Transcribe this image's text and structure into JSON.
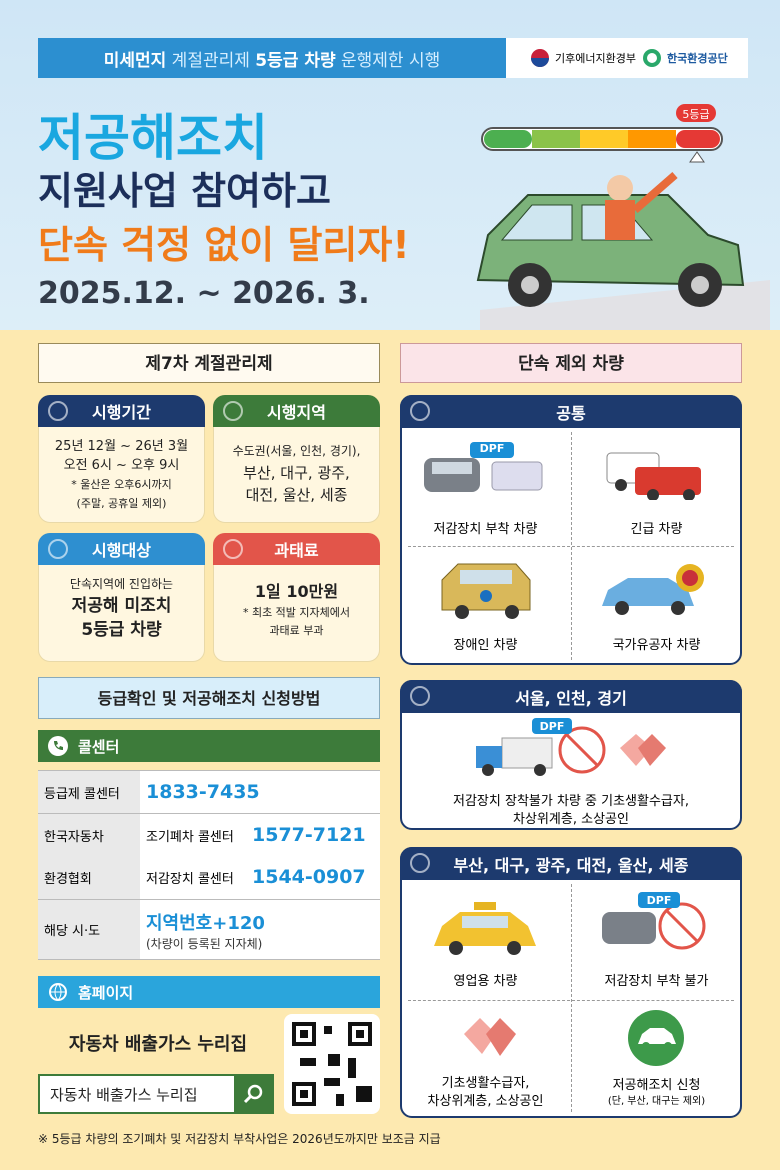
{
  "header": {
    "banner": [
      "미세먼지",
      " 계절관리제 ",
      "5등급 차량",
      " 운행제한 시행"
    ],
    "logos": [
      "기후에너지환경부",
      "한국환경공단"
    ],
    "title": [
      "저공해조치",
      "지원사업 참여하고",
      "단속 걱정 없이 달리자!"
    ],
    "period": "2025.12. ~ 2026. 3.",
    "gauge_label": "5등급"
  },
  "left": {
    "title": "제7차 계절관리제",
    "boxes": [
      {
        "label": "시행기간",
        "lines": [
          "25년 12월 ~ 26년 3월",
          "오전 6시 ~ 오후 9시",
          "* 울산은 오후6시까지",
          "(주말, 공휴일 제외)"
        ]
      },
      {
        "label": "시행지역",
        "lines": [
          "수도권(서울, 인천, 경기),",
          "부산, 대구, 광주,",
          "대전, 울산, 세종"
        ]
      },
      {
        "label": "시행대상",
        "lines": [
          "단속지역에 진입하는",
          "저공해 미조치",
          "5등급 차량"
        ]
      },
      {
        "label": "과태료",
        "lines": [
          "1일 10만원",
          "* 최초 적발 지자체에서",
          "과태료 부과"
        ]
      }
    ],
    "apply_title": "등급확인 및 저공해조치 신청방법",
    "call_center": "콜센터",
    "table": {
      "rows": [
        [
          "등급제 콜센터",
          "1833-7435"
        ],
        [
          "한국자동차",
          "조기폐차 콜센터",
          "1577-7121"
        ],
        [
          "환경협회",
          "저감장치 콜센터",
          "1544-0907"
        ],
        [
          "해당 시·도",
          "지역번호+120",
          "(차량이 등록된 지자체)"
        ]
      ]
    },
    "homepage": "홈페이지",
    "site_name": "자동차 배출가스 누리집",
    "search_text": "자동차 배출가스 누리집"
  },
  "right": {
    "title": "단속 제외 차량",
    "dpf": "DPF",
    "groups": [
      {
        "label": "공통",
        "items": [
          "저감장치 부착 차량",
          "긴급 차량",
          "장애인 차량",
          "국가유공자 차량"
        ]
      },
      {
        "label": "서울, 인천, 경기",
        "items": [
          "저감장치 장착불가 차량 중 기초생활수급자,",
          "차상위계층, 소상공인"
        ]
      },
      {
        "label": "부산, 대구, 광주, 대전, 울산, 세종",
        "items": [
          "영업용 차량",
          "저감장치 부착 불가",
          "기초생활수급자,",
          "차상위계층, 소상공인",
          "저공해조치 신청",
          "(단, 부산, 대구는 제외)"
        ]
      }
    ]
  },
  "footnote": "※ 5등급 차량의 조기폐차 및 저감장치 부착사업은 2026년도까지만 보조금 지급"
}
